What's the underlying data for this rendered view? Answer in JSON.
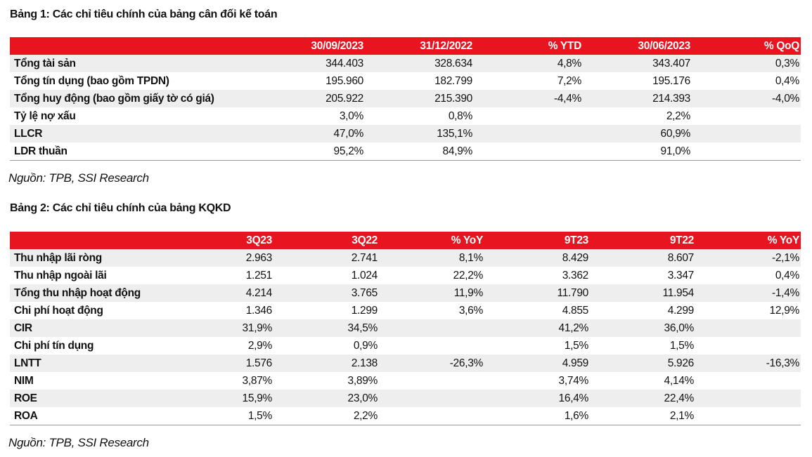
{
  "table1": {
    "title": "Bảng 1: Các chỉ tiêu chính của bảng cân đối kế toán",
    "header": [
      null,
      "30/09/2023",
      "31/12/2022",
      "% YTD",
      "30/06/2023",
      "% QoQ"
    ],
    "rows": [
      [
        "Tổng tài sản",
        "344.403",
        "328.634",
        "4,8%",
        "343.407",
        "0,3%"
      ],
      [
        "Tổng tín dụng (bao gồm TPDN)",
        "195.960",
        "182.799",
        "7,2%",
        "195.176",
        "0,4%"
      ],
      [
        "Tổng huy động (bao gồm giấy tờ có giá)",
        "205.922",
        "215.390",
        "-4,4%",
        "214.393",
        "-4,0%"
      ],
      [
        "Tỷ lệ nợ xấu",
        "3,0%",
        "0,8%",
        null,
        "2,2%",
        null
      ],
      [
        "LLCR",
        "47,0%",
        "135,1%",
        null,
        "60,9%",
        null
      ],
      [
        "LDR thuần",
        "95,2%",
        "84,9%",
        null,
        "91,0%",
        null
      ]
    ],
    "source": "Nguồn: TPB, SSI Research"
  },
  "table2": {
    "title": "Bảng 2: Các chỉ tiêu chính của bảng KQKD",
    "header": [
      null,
      "3Q23",
      "3Q22",
      "% YoY",
      "9T23",
      "9T22",
      "% YoY"
    ],
    "rows": [
      [
        "Thu nhập lãi ròng",
        "2.963",
        "2.741",
        "8,1%",
        "8.429",
        "8.607",
        "-2,1%"
      ],
      [
        "Thu nhập ngoài lãi",
        "1.251",
        "1.024",
        "22,2%",
        "3.362",
        "3.347",
        "0,4%"
      ],
      [
        "Tổng thu nhập hoạt động",
        "4.214",
        "3.765",
        "11,9%",
        "11.790",
        "11.954",
        "-1,4%"
      ],
      [
        "Chi phí hoạt động",
        "1.346",
        "1.299",
        "3,6%",
        "4.855",
        "4.299",
        "12,9%"
      ],
      [
        "CIR",
        "31,9%",
        "34,5%",
        null,
        "41,2%",
        "36,0%",
        null
      ],
      [
        "Chi phí tín dụng",
        "2,9%",
        "0,9%",
        null,
        "1,5%",
        "1,5%",
        null
      ],
      [
        "LNTT",
        "1.576",
        "2.138",
        "-26,3%",
        "4.959",
        "5.926",
        "-16,3%"
      ],
      [
        "NIM",
        "3,87%",
        "3,89%",
        null,
        "3,74%",
        "4,14%",
        null
      ],
      [
        "ROE",
        "15,9%",
        "23,0%",
        null,
        "16,4%",
        "22,4%",
        null
      ],
      [
        "ROA",
        "1,5%",
        "2,2%",
        null,
        "1,6%",
        "2,1%",
        null
      ]
    ],
    "source": "Nguồn: TPB, SSI Research"
  }
}
